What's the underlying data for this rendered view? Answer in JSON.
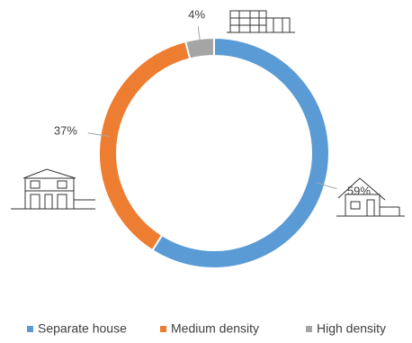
{
  "chart_data": {
    "type": "pie",
    "categories": [
      "Separate house",
      "Medium density",
      "High density"
    ],
    "values": [
      59,
      37,
      4
    ],
    "value_labels": [
      "59%",
      "37%",
      "4%"
    ],
    "colors": [
      "#5b9bd5",
      "#ed7d31",
      "#a5a5a5"
    ],
    "donut": true,
    "legend": "bottom"
  }
}
